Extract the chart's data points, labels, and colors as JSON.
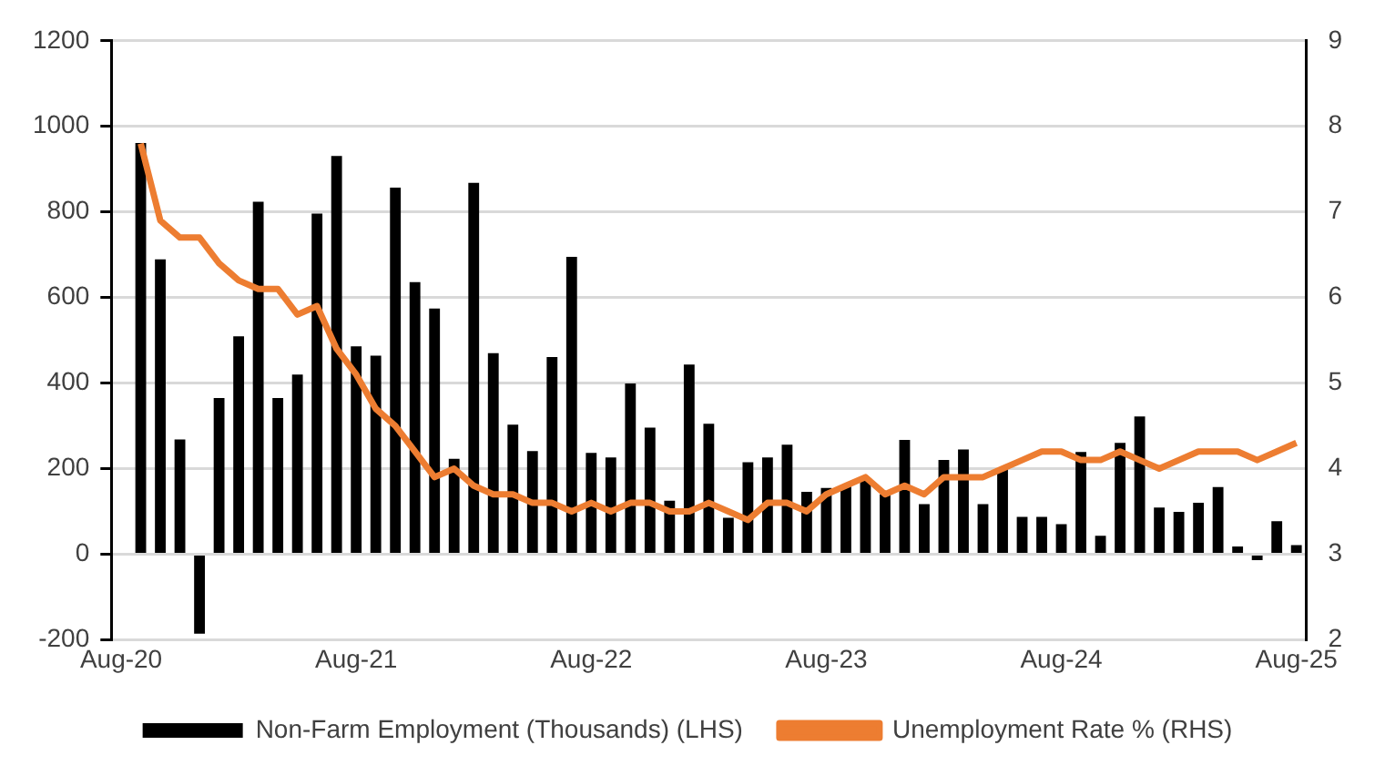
{
  "chart_data": {
    "type": "bar",
    "categories": [
      "Aug-20",
      null,
      null,
      null,
      null,
      null,
      null,
      null,
      null,
      null,
      null,
      null,
      "Aug-21",
      null,
      null,
      null,
      null,
      null,
      null,
      null,
      null,
      null,
      null,
      null,
      "Aug-22",
      null,
      null,
      null,
      null,
      null,
      null,
      null,
      null,
      null,
      null,
      null,
      "Aug-23",
      null,
      null,
      null,
      null,
      null,
      null,
      null,
      null,
      null,
      null,
      null,
      "Aug-24",
      null,
      null,
      null,
      null,
      null,
      null,
      null,
      null,
      null,
      null,
      null,
      "Aug-25"
    ],
    "series": [
      {
        "name": "Non-Farm Employment (Thousands) (LHS)",
        "color": "#000000",
        "values": [
          null,
          961,
          689,
          268,
          -186,
          365,
          509,
          824,
          365,
          420,
          796,
          931,
          486,
          464,
          857,
          636,
          574,
          223,
          868,
          470,
          303,
          241,
          461,
          695,
          237,
          226,
          399,
          296,
          125,
          443,
          305,
          85,
          215,
          226,
          256,
          146,
          155,
          160,
          175,
          140,
          267,
          117,
          220,
          245,
          117,
          200,
          87,
          87,
          70,
          239,
          43,
          260,
          322,
          109,
          99,
          120,
          157,
          18,
          -14,
          77,
          21
        ]
      },
      {
        "name": "Unemployment Rate % (RHS)",
        "type": "line",
        "axis": "y2",
        "color": "#ed7d31",
        "values": [
          null,
          7.8,
          6.9,
          6.7,
          6.7,
          6.4,
          6.2,
          6.1,
          6.1,
          5.8,
          5.9,
          5.4,
          5.1,
          4.7,
          4.5,
          4.2,
          3.9,
          4.0,
          3.8,
          3.7,
          3.7,
          3.6,
          3.6,
          3.5,
          3.6,
          3.5,
          3.6,
          3.6,
          3.5,
          3.5,
          3.6,
          3.5,
          3.4,
          3.6,
          3.6,
          3.5,
          3.7,
          3.8,
          3.9,
          3.7,
          3.8,
          3.7,
          3.9,
          3.9,
          3.9,
          4.0,
          4.1,
          4.2,
          4.2,
          4.1,
          4.1,
          4.2,
          4.1,
          4.0,
          4.1,
          4.2,
          4.2,
          4.2,
          4.1,
          4.2,
          4.3
        ]
      }
    ],
    "ylim": [
      -200,
      1200
    ],
    "yticks": [
      -200,
      0,
      200,
      400,
      600,
      800,
      1000,
      1200
    ],
    "y2lim": [
      2,
      9
    ],
    "y2ticks": [
      2,
      3,
      4,
      5,
      6,
      7,
      8,
      9
    ],
    "grid": "y",
    "legend": "bottom",
    "marker": "none",
    "line_style": "solid"
  }
}
